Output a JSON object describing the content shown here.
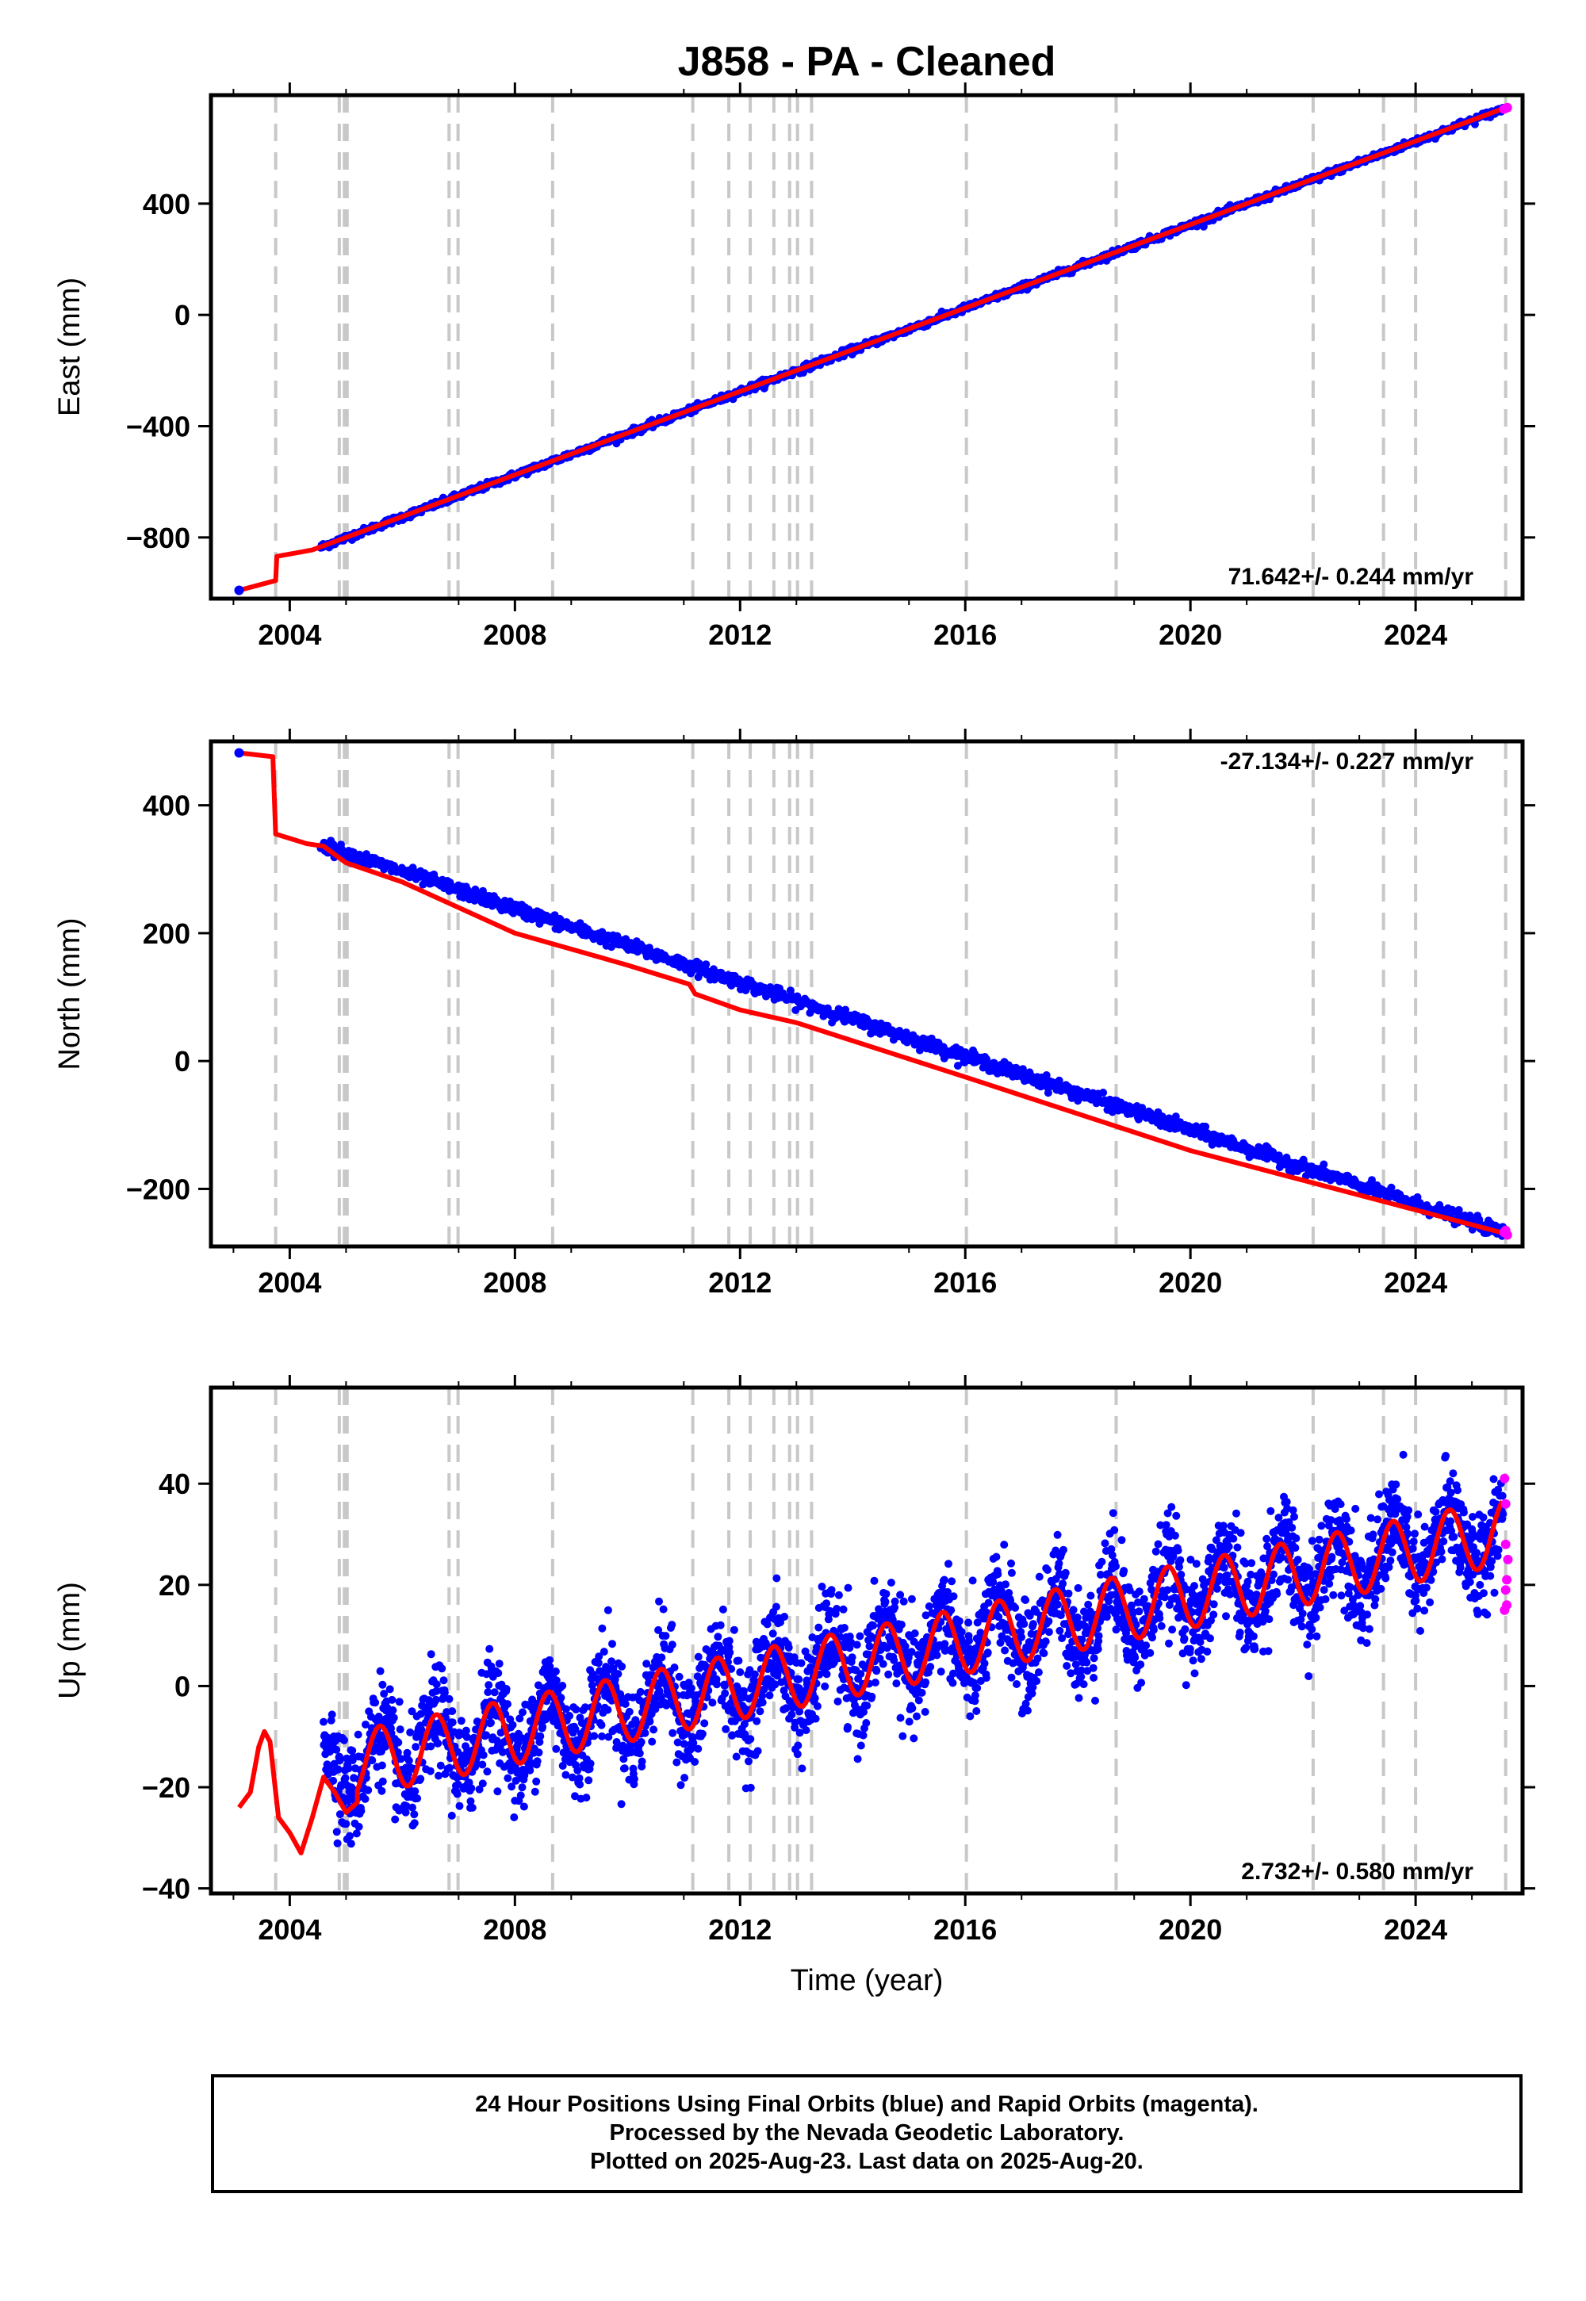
{
  "title": "J858  - PA - Cleaned",
  "footer": {
    "line1": "24 Hour Positions Using Final Orbits (blue) and Rapid Orbits (magenta).",
    "line2": "Processed by the Nevada Geodetic Laboratory.",
    "line3": "Plotted on 2025-Aug-23. Last data on 2025-Aug-20."
  },
  "colors": {
    "final": "#0000ff",
    "rapid": "#ff00ff",
    "model": "#ff0000",
    "events": "#c8c8c8"
  },
  "events": [
    2003.75,
    2004.88,
    2004.97,
    2005.02,
    2006.83,
    2006.99,
    2008.67,
    2011.16,
    2011.8,
    2012.18,
    2012.6,
    2012.88,
    2013.02,
    2013.27,
    2016.02,
    2018.68,
    2022.18,
    2023.43,
    2024.0,
    2025.6
  ],
  "chart_data": [
    {
      "type": "scatter",
      "name": "east",
      "ylabel": "East (mm)",
      "xlabel": "",
      "xlim": [
        2002.6,
        2025.9
      ],
      "ylim": [
        -1020,
        790
      ],
      "yticks": [
        400,
        0,
        -400,
        -800
      ],
      "xticks": [
        2004,
        2008,
        2012,
        2016,
        2020,
        2024
      ],
      "rate_label": "71.642+/- 0.244 mm/yr",
      "model": [
        [
          2003.1,
          -990
        ],
        [
          2003.75,
          -955
        ],
        [
          2003.77,
          -868
        ],
        [
          2004.4,
          -845
        ],
        [
          2004.6,
          -830
        ],
        [
          2025.6,
          745
        ]
      ],
      "final": {
        "start": 2004.55,
        "end": 2025.55,
        "y_start": -835,
        "y_end": 740,
        "scatter": 6
      },
      "rapid": [
        [
          2025.57,
          740
        ],
        [
          2025.6,
          743
        ],
        [
          2025.63,
          745
        ]
      ]
    },
    {
      "type": "scatter",
      "name": "north",
      "ylabel": "North (mm)",
      "xlabel": "",
      "xlim": [
        2002.6,
        2025.9
      ],
      "ylim": [
        -290,
        500
      ],
      "yticks": [
        400,
        200,
        0,
        -200
      ],
      "xticks": [
        2004,
        2008,
        2012,
        2016,
        2020,
        2024
      ],
      "rate_label": "-27.134+/- 0.227 mm/yr",
      "model": [
        [
          2003.1,
          482
        ],
        [
          2003.7,
          476
        ],
        [
          2003.75,
          355
        ],
        [
          2004.3,
          340
        ],
        [
          2004.6,
          336
        ],
        [
          2005.0,
          310
        ],
        [
          2006.0,
          280
        ],
        [
          2008.0,
          200
        ],
        [
          2010.0,
          150
        ],
        [
          2011.1,
          120
        ],
        [
          2011.2,
          105
        ],
        [
          2012.0,
          80
        ],
        [
          2013.0,
          60
        ],
        [
          2016.0,
          -25
        ],
        [
          2020.0,
          -140
        ],
        [
          2025.6,
          -270
        ]
      ],
      "final": {
        "start": 2004.55,
        "end": 2025.55,
        "y_start": 338,
        "y_end": -268,
        "scatter": 5
      },
      "rapid": [
        [
          2025.57,
          -268
        ],
        [
          2025.6,
          -265
        ],
        [
          2025.63,
          -272
        ]
      ]
    },
    {
      "type": "scatter",
      "name": "up",
      "ylabel": "Up (mm)",
      "xlabel": "Time (year)",
      "xlim": [
        2002.6,
        2025.9
      ],
      "ylim": [
        -41,
        59
      ],
      "yticks": [
        40,
        20,
        0,
        -20,
        -40
      ],
      "xticks": [
        2004,
        2008,
        2012,
        2016,
        2020,
        2024
      ],
      "rate_label": "2.732+/- 0.580 mm/yr",
      "model_pre": [
        [
          2003.1,
          -24
        ],
        [
          2003.3,
          -21
        ],
        [
          2003.45,
          -12
        ],
        [
          2003.55,
          -9
        ],
        [
          2003.65,
          -11
        ],
        [
          2003.8,
          -26
        ],
        [
          2004.0,
          -29
        ],
        [
          2004.2,
          -33
        ],
        [
          2004.4,
          -26
        ],
        [
          2004.6,
          -18
        ],
        [
          2004.8,
          -21
        ],
        [
          2005.0,
          -25
        ],
        [
          2005.2,
          -23
        ]
      ],
      "seasonal": {
        "start": 2005.2,
        "end": 2025.55,
        "trend_base": -18,
        "trend_rate": 2.25,
        "amp": 6.5,
        "noise": 5
      },
      "rapid": [
        [
          2025.58,
          41
        ],
        [
          2025.6,
          36
        ],
        [
          2025.6,
          28
        ],
        [
          2025.62,
          21
        ],
        [
          2025.6,
          19
        ],
        [
          2025.62,
          16
        ],
        [
          2025.58,
          15
        ],
        [
          2025.64,
          25
        ]
      ]
    }
  ]
}
